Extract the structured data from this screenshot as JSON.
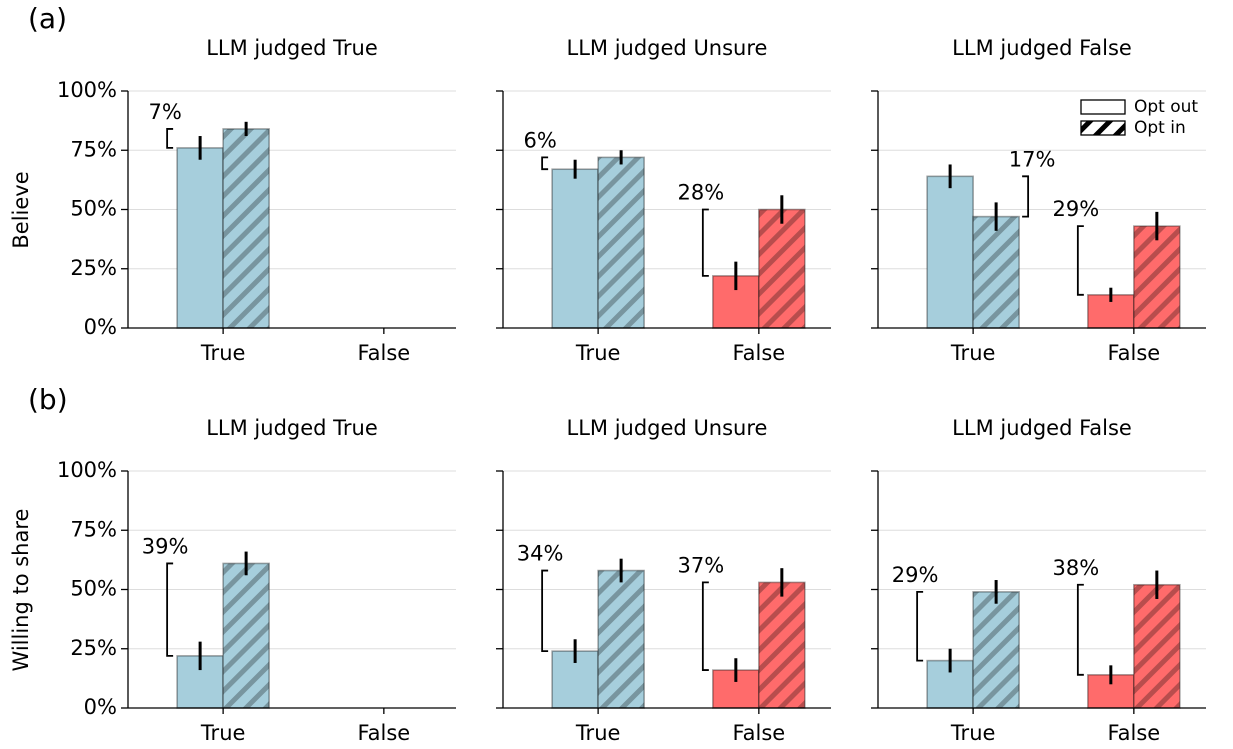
{
  "panel_labels": [
    "(a)",
    "(b)"
  ],
  "row_labels": [
    "Believe",
    "Willing to share"
  ],
  "chart_data": [
    {
      "type": "bar",
      "title": "LLM judged True",
      "categories": [
        "True",
        "False"
      ],
      "category_colors": [
        "#a6cedc",
        "#ff6b6b"
      ],
      "series": [
        {
          "name": "Opt out",
          "values": [
            76,
            null
          ],
          "errors": [
            5,
            null
          ]
        },
        {
          "name": "Opt in",
          "values": [
            84,
            null
          ],
          "errors": [
            3,
            null
          ]
        }
      ],
      "annotations": [
        {
          "text": "7%",
          "category": "True"
        }
      ],
      "ylim": [
        0,
        100
      ],
      "yticks": [
        {
          "value": 0,
          "label": "0%"
        },
        {
          "value": 25,
          "label": "25%"
        },
        {
          "value": 50,
          "label": "50%"
        },
        {
          "value": 75,
          "label": "75%"
        },
        {
          "value": 100,
          "label": "100%"
        }
      ],
      "grid": true
    },
    {
      "type": "bar",
      "title": "LLM judged Unsure",
      "categories": [
        "True",
        "False"
      ],
      "category_colors": [
        "#a6cedc",
        "#ff6b6b"
      ],
      "series": [
        {
          "name": "Opt out",
          "values": [
            67,
            22
          ],
          "errors": [
            4,
            6
          ]
        },
        {
          "name": "Opt in",
          "values": [
            72,
            50
          ],
          "errors": [
            3,
            6
          ]
        }
      ],
      "annotations": [
        {
          "text": "6%",
          "category": "True"
        },
        {
          "text": "28%",
          "category": "False"
        }
      ],
      "ylim": [
        0,
        100
      ],
      "yticks": [
        0,
        25,
        50,
        75,
        100
      ],
      "ytick_labels": false,
      "grid": true
    },
    {
      "type": "bar",
      "title": "LLM judged False",
      "categories": [
        "True",
        "False"
      ],
      "category_colors": [
        "#a6cedc",
        "#ff6b6b"
      ],
      "series": [
        {
          "name": "Opt out",
          "values": [
            64,
            14
          ],
          "errors": [
            5,
            3
          ]
        },
        {
          "name": "Opt in",
          "values": [
            47,
            43
          ],
          "errors": [
            6,
            6
          ]
        }
      ],
      "annotations": [
        {
          "text": "17%",
          "category": "True"
        },
        {
          "text": "29%",
          "category": "False"
        }
      ],
      "ylim": [
        0,
        100
      ],
      "yticks": [
        0,
        25,
        50,
        75,
        100
      ],
      "ytick_labels": false,
      "grid": true,
      "legend": "upper right"
    },
    {
      "type": "bar",
      "title": "LLM judged True",
      "categories": [
        "True",
        "False"
      ],
      "category_colors": [
        "#a6cedc",
        "#ff6b6b"
      ],
      "series": [
        {
          "name": "Opt out",
          "values": [
            22,
            null
          ],
          "errors": [
            6,
            null
          ]
        },
        {
          "name": "Opt in",
          "values": [
            61,
            null
          ],
          "errors": [
            5,
            null
          ]
        }
      ],
      "annotations": [
        {
          "text": "39%",
          "category": "True"
        }
      ],
      "ylim": [
        0,
        100
      ],
      "yticks": [
        {
          "value": 0,
          "label": "0%"
        },
        {
          "value": 25,
          "label": "25%"
        },
        {
          "value": 50,
          "label": "50%"
        },
        {
          "value": 75,
          "label": "75%"
        },
        {
          "value": 100,
          "label": "100%"
        }
      ],
      "grid": true
    },
    {
      "type": "bar",
      "title": "LLM judged Unsure",
      "categories": [
        "True",
        "False"
      ],
      "category_colors": [
        "#a6cedc",
        "#ff6b6b"
      ],
      "series": [
        {
          "name": "Opt out",
          "values": [
            24,
            16
          ],
          "errors": [
            5,
            5
          ]
        },
        {
          "name": "Opt in",
          "values": [
            58,
            53
          ],
          "errors": [
            5,
            6
          ]
        }
      ],
      "annotations": [
        {
          "text": "34%",
          "category": "True"
        },
        {
          "text": "37%",
          "category": "False"
        }
      ],
      "ylim": [
        0,
        100
      ],
      "yticks": [
        0,
        25,
        50,
        75,
        100
      ],
      "ytick_labels": false,
      "grid": true
    },
    {
      "type": "bar",
      "title": "LLM judged False",
      "categories": [
        "True",
        "False"
      ],
      "category_colors": [
        "#a6cedc",
        "#ff6b6b"
      ],
      "series": [
        {
          "name": "Opt out",
          "values": [
            20,
            14
          ],
          "errors": [
            5,
            4
          ]
        },
        {
          "name": "Opt in",
          "values": [
            49,
            52
          ],
          "errors": [
            5,
            6
          ]
        }
      ],
      "annotations": [
        {
          "text": "29%",
          "category": "True"
        },
        {
          "text": "38%",
          "category": "False"
        }
      ],
      "ylim": [
        0,
        100
      ],
      "yticks": [
        0,
        25,
        50,
        75,
        100
      ],
      "ytick_labels": false,
      "grid": true
    }
  ]
}
